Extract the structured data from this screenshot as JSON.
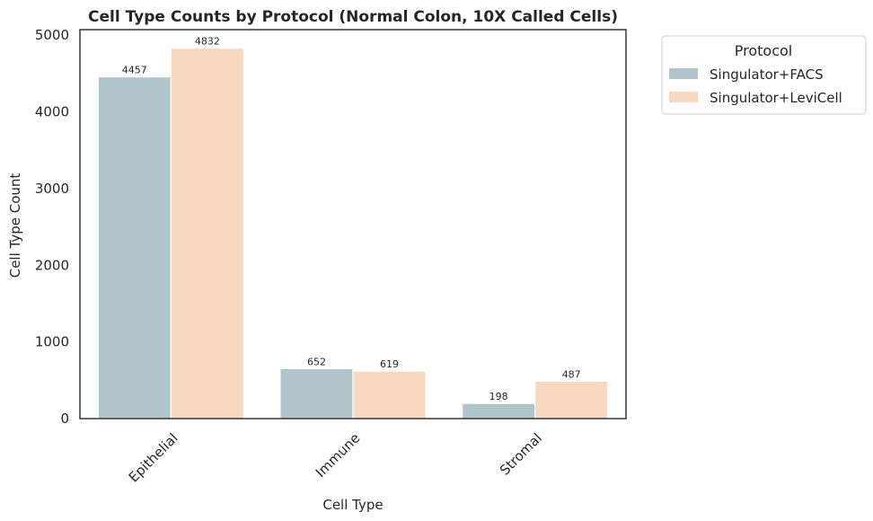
{
  "chart_data": {
    "type": "bar",
    "title": "Cell Type Counts by Protocol (Normal Colon, 10X Called Cells)",
    "xlabel": "Cell Type",
    "ylabel": "Cell Type Count",
    "categories": [
      "Epithelial",
      "Immune",
      "Stromal"
    ],
    "series": [
      {
        "name": "Singulator+FACS",
        "values": [
          4457,
          652,
          198
        ],
        "color": "#b0c4cc"
      },
      {
        "name": "Singulator+LeviCell",
        "values": [
          4832,
          619,
          487
        ],
        "color": "#f6d9c0"
      }
    ],
    "ylim": [
      0,
      5073
    ],
    "yticks": [
      0,
      1000,
      2000,
      3000,
      4000,
      5000
    ],
    "grid": false,
    "legend": {
      "title": "Protocol",
      "placement": "outside-top-right"
    }
  }
}
